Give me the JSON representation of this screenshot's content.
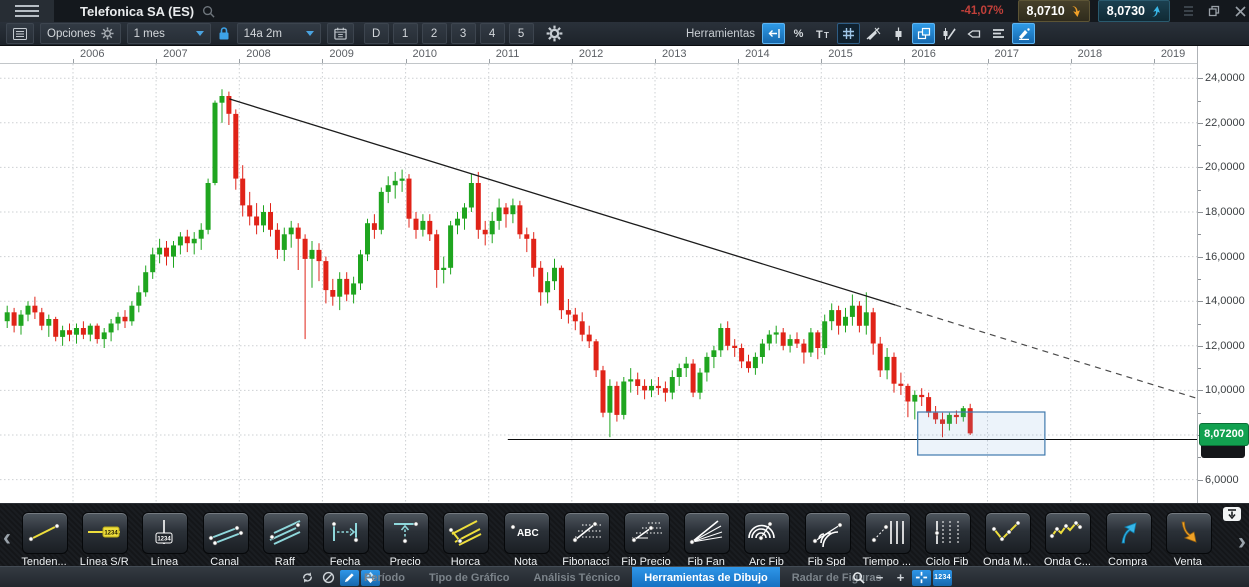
{
  "titlebar": {
    "title": "Telefonica SA (ES)",
    "change_pct": "-41,07%",
    "bid": "8,0710",
    "ask": "8,0730"
  },
  "toolbar": {
    "options_label": "Opciones",
    "interval_value": "1 mes",
    "range_value": "14a 2m",
    "period_buttons": [
      "D",
      "1",
      "2",
      "3",
      "4",
      "5"
    ],
    "tools_label": "Herramientas",
    "tool_icons": [
      {
        "name": "undo",
        "active": true
      },
      {
        "name": "percent"
      },
      {
        "name": "text-size"
      },
      {
        "name": "grid",
        "framed": true
      },
      {
        "name": "draw-indicator"
      },
      {
        "name": "candle"
      },
      {
        "name": "chart-windows",
        "active": true
      },
      {
        "name": "candle-edit"
      },
      {
        "name": "callout"
      },
      {
        "name": "line-style"
      },
      {
        "name": "draw-settings",
        "active": true
      }
    ]
  },
  "colors": {
    "accent_blue": "#1f8ee3",
    "candle_up": "#1fa51f",
    "candle_down": "#e02318",
    "badge_green": "#12a150",
    "change_red": "#c2403a",
    "bid_arrow_orange": "#f0a028",
    "ask_arrow_cyan": "#39b7e8",
    "selection_blue": "#4079ad"
  },
  "chart_data": {
    "type": "candlestick",
    "symbol": "Telefonica SA (ES)",
    "interval": "1 mes",
    "grid": "dotted",
    "x_years": [
      2006,
      2007,
      2008,
      2009,
      2010,
      2011,
      2012,
      2013,
      2014,
      2015,
      2016,
      2017,
      2018,
      2019
    ],
    "y_ticks": [
      {
        "price": 24,
        "label": "24,0000"
      },
      {
        "price": 22,
        "label": "22,0000"
      },
      {
        "price": 20,
        "label": "20,0000"
      },
      {
        "price": 18,
        "label": "18,0000"
      },
      {
        "price": 16,
        "label": "16,0000"
      },
      {
        "price": 14,
        "label": "14,0000"
      },
      {
        "price": 12,
        "label": "12,0000"
      },
      {
        "price": 10,
        "label": "10,0000"
      },
      {
        "price": 6,
        "label": "6,0000"
      }
    ],
    "ylim": [
      4.95,
      24.6
    ],
    "xlim": [
      2005.1,
      2019.55
    ],
    "last_price": 8.072,
    "last_price_label": "8,07200",
    "candles": {
      "start_year": 2005,
      "start_month": 3,
      "ohlc": [
        [
          13.1,
          13.8,
          12.8,
          13.5
        ],
        [
          13.5,
          13.7,
          12.6,
          12.9
        ],
        [
          12.9,
          13.6,
          12.5,
          13.4
        ],
        [
          13.4,
          14.0,
          13.1,
          13.8
        ],
        [
          13.8,
          14.2,
          13.2,
          13.5
        ],
        [
          13.5,
          13.7,
          12.7,
          12.9
        ],
        [
          12.9,
          13.4,
          12.4,
          13.2
        ],
        [
          13.2,
          13.3,
          12.2,
          12.4
        ],
        [
          12.4,
          12.9,
          12.0,
          12.7
        ],
        [
          12.7,
          13.0,
          12.2,
          12.5
        ],
        [
          12.5,
          13.0,
          12.1,
          12.8
        ],
        [
          12.8,
          13.1,
          12.3,
          12.5
        ],
        [
          12.5,
          13.0,
          12.2,
          12.9
        ],
        [
          12.9,
          13.0,
          12.1,
          12.3
        ],
        [
          12.3,
          12.8,
          11.9,
          12.6
        ],
        [
          12.6,
          13.2,
          12.2,
          13.0
        ],
        [
          13.0,
          13.5,
          12.7,
          13.3
        ],
        [
          13.3,
          13.6,
          12.8,
          13.1
        ],
        [
          13.1,
          14.0,
          12.9,
          13.8
        ],
        [
          13.8,
          14.7,
          13.5,
          14.4
        ],
        [
          14.4,
          15.6,
          14.2,
          15.3
        ],
        [
          15.3,
          16.4,
          15.0,
          16.1
        ],
        [
          16.1,
          16.8,
          15.7,
          16.4
        ],
        [
          16.4,
          16.7,
          15.6,
          16.0
        ],
        [
          16.0,
          16.7,
          15.5,
          16.5
        ],
        [
          16.5,
          17.1,
          16.1,
          16.9
        ],
        [
          16.9,
          17.2,
          16.2,
          16.6
        ],
        [
          16.6,
          17.1,
          16.1,
          16.8
        ],
        [
          16.8,
          17.5,
          16.3,
          17.2
        ],
        [
          17.2,
          19.5,
          17.0,
          19.3
        ],
        [
          19.3,
          23.0,
          19.2,
          22.9
        ],
        [
          22.9,
          23.5,
          22.0,
          23.2
        ],
        [
          23.2,
          23.4,
          21.9,
          22.4
        ],
        [
          22.4,
          22.6,
          19.0,
          19.5
        ],
        [
          19.5,
          20.1,
          17.8,
          18.3
        ],
        [
          18.3,
          18.9,
          17.4,
          17.8
        ],
        [
          17.8,
          18.4,
          17.0,
          17.4
        ],
        [
          17.4,
          18.3,
          17.1,
          18.0
        ],
        [
          18.0,
          18.4,
          16.9,
          17.2
        ],
        [
          17.2,
          17.5,
          15.9,
          16.3
        ],
        [
          16.3,
          17.3,
          15.8,
          17.0
        ],
        [
          17.0,
          17.6,
          16.4,
          17.3
        ],
        [
          17.3,
          17.5,
          15.4,
          16.8
        ],
        [
          16.8,
          17.0,
          12.3,
          15.9
        ],
        [
          15.9,
          16.7,
          14.6,
          16.3
        ],
        [
          16.3,
          16.6,
          14.9,
          15.8
        ],
        [
          15.8,
          16.0,
          13.9,
          14.5
        ],
        [
          14.5,
          15.0,
          13.8,
          14.2
        ],
        [
          14.2,
          15.3,
          13.6,
          15.0
        ],
        [
          15.0,
          15.3,
          14.0,
          14.3
        ],
        [
          14.3,
          15.1,
          13.9,
          14.8
        ],
        [
          14.8,
          16.3,
          14.5,
          16.1
        ],
        [
          16.1,
          17.7,
          15.8,
          17.5
        ],
        [
          17.5,
          17.9,
          16.8,
          17.2
        ],
        [
          17.2,
          19.1,
          17.0,
          18.9
        ],
        [
          18.9,
          19.6,
          18.4,
          19.2
        ],
        [
          19.2,
          19.8,
          18.6,
          19.4
        ],
        [
          19.4,
          19.9,
          18.9,
          19.5
        ],
        [
          19.5,
          19.7,
          17.3,
          17.7
        ],
        [
          17.7,
          18.0,
          16.8,
          17.2
        ],
        [
          17.2,
          17.9,
          16.9,
          17.6
        ],
        [
          17.6,
          17.9,
          16.7,
          17.0
        ],
        [
          17.0,
          17.2,
          14.6,
          15.4
        ],
        [
          15.4,
          16.0,
          14.8,
          15.5
        ],
        [
          15.5,
          17.6,
          15.2,
          17.4
        ],
        [
          17.4,
          18.0,
          17.0,
          17.7
        ],
        [
          17.7,
          18.4,
          17.2,
          18.2
        ],
        [
          18.2,
          19.7,
          18.0,
          19.3
        ],
        [
          19.3,
          19.8,
          16.8,
          17.2
        ],
        [
          17.2,
          17.6,
          16.5,
          17.0
        ],
        [
          17.0,
          18.0,
          16.6,
          17.6
        ],
        [
          17.6,
          18.6,
          17.2,
          18.2
        ],
        [
          18.2,
          18.4,
          17.3,
          17.9
        ],
        [
          17.9,
          18.6,
          17.5,
          18.3
        ],
        [
          18.3,
          18.5,
          16.8,
          17.0
        ],
        [
          17.0,
          17.3,
          16.2,
          16.8
        ],
        [
          16.8,
          17.1,
          15.1,
          15.5
        ],
        [
          15.5,
          15.8,
          13.8,
          14.4
        ],
        [
          14.4,
          15.3,
          13.9,
          14.9
        ],
        [
          14.9,
          15.9,
          14.5,
          15.5
        ],
        [
          15.5,
          15.6,
          13.2,
          13.6
        ],
        [
          13.6,
          14.1,
          13.0,
          13.4
        ],
        [
          13.4,
          13.7,
          12.7,
          13.1
        ],
        [
          13.1,
          13.5,
          12.2,
          12.5
        ],
        [
          12.5,
          12.9,
          11.9,
          12.2
        ],
        [
          12.2,
          12.3,
          10.6,
          10.9
        ],
        [
          10.9,
          11.1,
          8.8,
          9.0
        ],
        [
          9.0,
          10.5,
          7.9,
          10.2
        ],
        [
          10.2,
          10.4,
          8.6,
          8.9
        ],
        [
          8.9,
          10.6,
          8.7,
          10.4
        ],
        [
          10.4,
          11.0,
          9.9,
          10.5
        ],
        [
          10.5,
          10.8,
          9.8,
          10.2
        ],
        [
          10.2,
          10.5,
          9.6,
          10.0
        ],
        [
          10.0,
          10.5,
          9.7,
          10.2
        ],
        [
          10.2,
          10.6,
          9.8,
          10.1
        ],
        [
          10.1,
          10.4,
          9.5,
          9.9
        ],
        [
          9.9,
          10.9,
          9.6,
          10.6
        ],
        [
          10.6,
          11.2,
          10.2,
          11.0
        ],
        [
          11.0,
          11.5,
          10.6,
          11.2
        ],
        [
          11.2,
          11.4,
          9.7,
          9.9
        ],
        [
          9.9,
          11.0,
          9.6,
          10.8
        ],
        [
          10.8,
          11.7,
          10.4,
          11.5
        ],
        [
          11.5,
          12.0,
          11.0,
          11.8
        ],
        [
          11.8,
          13.0,
          11.5,
          12.8
        ],
        [
          12.8,
          13.1,
          11.8,
          12.0
        ],
        [
          12.0,
          12.3,
          11.5,
          11.9
        ],
        [
          11.9,
          12.1,
          11.0,
          11.3
        ],
        [
          11.3,
          11.6,
          10.8,
          11.0
        ],
        [
          11.0,
          11.7,
          10.7,
          11.5
        ],
        [
          11.5,
          12.3,
          11.2,
          12.1
        ],
        [
          12.1,
          12.7,
          11.8,
          12.5
        ],
        [
          12.5,
          12.9,
          12.1,
          12.6
        ],
        [
          12.6,
          12.8,
          11.8,
          12.0
        ],
        [
          12.0,
          12.5,
          11.7,
          12.3
        ],
        [
          12.3,
          12.6,
          11.9,
          12.1
        ],
        [
          12.1,
          12.3,
          11.2,
          11.7
        ],
        [
          11.7,
          12.8,
          11.5,
          12.6
        ],
        [
          12.6,
          12.7,
          11.4,
          11.9
        ],
        [
          11.9,
          13.4,
          11.6,
          13.1
        ],
        [
          13.1,
          13.9,
          12.7,
          13.6
        ],
        [
          13.6,
          13.8,
          12.5,
          12.9
        ],
        [
          12.9,
          13.7,
          12.6,
          13.3
        ],
        [
          13.3,
          14.3,
          12.9,
          13.8
        ],
        [
          13.8,
          14.0,
          12.6,
          12.9
        ],
        [
          12.9,
          14.4,
          12.5,
          13.5
        ],
        [
          13.5,
          13.7,
          11.6,
          12.1
        ],
        [
          12.1,
          12.4,
          10.6,
          10.9
        ],
        [
          10.9,
          11.9,
          10.5,
          11.5
        ],
        [
          11.5,
          11.7,
          9.9,
          10.3
        ],
        [
          10.3,
          10.8,
          9.8,
          10.2
        ],
        [
          10.2,
          10.3,
          8.8,
          9.5
        ],
        [
          9.5,
          10.0,
          8.7,
          9.8
        ],
        [
          9.8,
          10.1,
          9.3,
          9.7
        ],
        [
          9.7,
          9.9,
          8.8,
          9.0
        ],
        [
          9.0,
          9.3,
          8.5,
          8.7
        ],
        [
          8.7,
          9.0,
          7.9,
          8.5
        ],
        [
          8.5,
          9.0,
          8.2,
          8.9
        ],
        [
          8.9,
          9.1,
          8.5,
          8.8
        ],
        [
          8.8,
          9.3,
          8.6,
          9.2
        ],
        [
          9.2,
          9.4,
          8.0,
          8.07
        ]
      ]
    },
    "annotations": {
      "trendline": {
        "x1": 2007.88,
        "price1": 23.07,
        "x2": 2015.89,
        "price2": 13.83,
        "dash_to_x": 2019.52
      },
      "support_line": {
        "price": 7.8,
        "x_start": 2011.23,
        "x_end": 2019.52
      },
      "selection_rect": {
        "x1": 2016.16,
        "x2": 2017.69,
        "price_top": 9.03,
        "price_bottom": 7.1
      }
    }
  },
  "drawbar": {
    "tools": [
      {
        "label": "Tenden...",
        "icon": "trend"
      },
      {
        "label": "Línea S/R",
        "icon": "sr-line",
        "badge": "1234"
      },
      {
        "label": "Línea",
        "icon": "vline",
        "badge": "1234"
      },
      {
        "label": "Canal",
        "icon": "channel"
      },
      {
        "label": "Raff",
        "icon": "raff"
      },
      {
        "label": "Fecha",
        "icon": "date-range"
      },
      {
        "label": "Precio",
        "icon": "price-range"
      },
      {
        "label": "Horca",
        "icon": "pitchfork"
      },
      {
        "label": "Nota",
        "icon": "note",
        "badge": "ABC"
      },
      {
        "label": "Fibonacci",
        "icon": "fib"
      },
      {
        "label": "Fib Precio",
        "icon": "fib-price"
      },
      {
        "label": "Fib Fan",
        "icon": "fib-fan"
      },
      {
        "label": "Arc Fib",
        "icon": "fib-arc"
      },
      {
        "label": "Fib Spd",
        "icon": "fib-speed"
      },
      {
        "label": "Tiempo ...",
        "icon": "time-lines"
      },
      {
        "label": "Ciclo Fib",
        "icon": "fib-cycle"
      },
      {
        "label": "Onda M...",
        "icon": "wave-m"
      },
      {
        "label": "Onda C...",
        "icon": "wave-c"
      },
      {
        "label": "Compra",
        "icon": "buy-arrow"
      },
      {
        "label": "Venta",
        "icon": "sell-arrow"
      }
    ]
  },
  "statusbar": {
    "left_icons": [
      {
        "name": "sync"
      },
      {
        "name": "disable"
      },
      {
        "name": "edit",
        "active": true
      },
      {
        "name": "sort",
        "active": true
      }
    ],
    "tabs": [
      {
        "label": "Período"
      },
      {
        "label": "Tipo de Gráfico"
      },
      {
        "label": "Análisis Técnico"
      },
      {
        "label": "Herramientas de Dibujo",
        "active": true
      },
      {
        "label": "Radar de Figuras"
      }
    ],
    "right_icons": [
      {
        "name": "zoom-search"
      },
      {
        "name": "zoom-out",
        "label": "−"
      },
      {
        "name": "zoom-in",
        "label": "+"
      },
      {
        "name": "crosshair",
        "active": true
      },
      {
        "name": "values",
        "active": true,
        "label": "1234"
      }
    ]
  }
}
